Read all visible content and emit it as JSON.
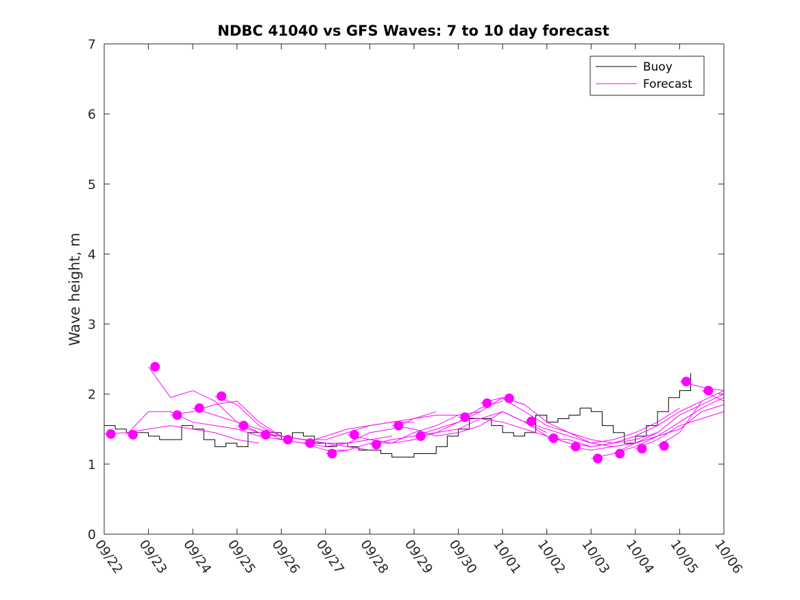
{
  "chart_data": {
    "type": "line",
    "title": "NDBC 41040 vs GFS Waves: 7 to 10 day forecast",
    "xlabel": "",
    "ylabel": "Wave height, m",
    "xlim": [
      0,
      14
    ],
    "ylim": [
      0,
      7
    ],
    "y_ticks": [
      "0",
      "1",
      "2",
      "3",
      "4",
      "5",
      "6",
      "7"
    ],
    "x_tick_labels": [
      "09/22",
      "09/23",
      "09/24",
      "09/25",
      "09/26",
      "09/27",
      "09/28",
      "09/29",
      "09/30",
      "10/01",
      "10/02",
      "10/03",
      "10/04",
      "10/05",
      "10/06"
    ],
    "legend": {
      "location": "top-right",
      "entries": [
        "Buoy",
        "Forecast"
      ]
    },
    "colors": {
      "buoy": "#000000",
      "forecast": "#ff00ff",
      "axis": "#262626"
    },
    "buoy_series": {
      "name": "Buoy",
      "x": [
        0.0,
        0.25,
        0.5,
        0.75,
        1.0,
        1.25,
        1.5,
        1.75,
        2.0,
        2.25,
        2.5,
        2.75,
        3.0,
        3.25,
        3.5,
        3.75,
        4.0,
        4.25,
        4.5,
        4.75,
        5.0,
        5.25,
        5.5,
        5.75,
        6.0,
        6.25,
        6.5,
        6.75,
        7.0,
        7.25,
        7.5,
        7.75,
        8.0,
        8.25,
        8.5,
        8.75,
        9.0,
        9.25,
        9.5,
        9.75,
        10.0,
        10.25,
        10.5,
        10.75,
        11.0,
        11.25,
        11.5,
        11.75,
        12.0,
        12.25,
        12.5,
        12.75,
        13.0,
        13.25
      ],
      "values": [
        1.55,
        1.5,
        1.45,
        1.45,
        1.4,
        1.35,
        1.35,
        1.55,
        1.5,
        1.35,
        1.25,
        1.3,
        1.25,
        1.45,
        1.45,
        1.45,
        1.35,
        1.45,
        1.4,
        1.3,
        1.25,
        1.3,
        1.25,
        1.2,
        1.2,
        1.15,
        1.1,
        1.1,
        1.15,
        1.15,
        1.25,
        1.4,
        1.5,
        1.65,
        1.65,
        1.55,
        1.45,
        1.4,
        1.45,
        1.7,
        1.6,
        1.65,
        1.7,
        1.8,
        1.75,
        1.55,
        1.45,
        1.3,
        1.4,
        1.55,
        1.75,
        1.95,
        2.05,
        2.3
      ]
    },
    "forecast_series": [
      {
        "name": "Forecast",
        "x": [
          0.0,
          0.5,
          1.0,
          1.5,
          2.0,
          2.5,
          3.0,
          3.5
        ],
        "values": [
          1.43,
          1.45,
          1.5,
          1.55,
          1.5,
          1.45,
          1.35,
          1.3
        ]
      },
      {
        "name": "Forecast",
        "x": [
          0.5,
          1.0,
          1.5,
          2.0,
          2.5,
          3.0,
          3.5,
          4.0
        ],
        "values": [
          1.42,
          1.75,
          1.75,
          1.6,
          1.55,
          1.5,
          1.4,
          1.35
        ]
      },
      {
        "name": "Forecast",
        "x": [
          1.0,
          1.5,
          2.0,
          2.5,
          3.0,
          3.5,
          4.0,
          4.5
        ],
        "values": [
          2.39,
          1.95,
          2.05,
          1.9,
          1.6,
          1.45,
          1.4,
          1.35
        ]
      },
      {
        "name": "Forecast",
        "x": [
          1.5,
          2.0,
          2.5,
          3.0,
          3.5,
          4.0,
          4.5,
          5.0
        ],
        "values": [
          1.7,
          1.75,
          1.85,
          1.9,
          1.6,
          1.4,
          1.35,
          1.3
        ]
      },
      {
        "name": "Forecast",
        "x": [
          2.0,
          2.5,
          3.0,
          3.5,
          4.0,
          4.5,
          5.0,
          5.5
        ],
        "values": [
          1.8,
          1.7,
          1.6,
          1.5,
          1.35,
          1.3,
          1.2,
          1.2
        ]
      },
      {
        "name": "Forecast",
        "x": [
          2.5,
          3.0,
          3.5,
          4.0,
          4.5,
          5.0,
          5.5,
          6.0
        ],
        "values": [
          1.97,
          1.85,
          1.55,
          1.4,
          1.35,
          1.3,
          1.25,
          1.2
        ]
      },
      {
        "name": "Forecast",
        "x": [
          3.0,
          3.5,
          4.0,
          4.5,
          5.0,
          5.5,
          6.0,
          6.5
        ],
        "values": [
          1.55,
          1.45,
          1.4,
          1.35,
          1.3,
          1.3,
          1.35,
          1.4
        ]
      },
      {
        "name": "Forecast",
        "x": [
          3.5,
          4.0,
          4.5,
          5.0,
          5.5,
          6.0,
          6.5,
          7.0
        ],
        "values": [
          1.42,
          1.4,
          1.35,
          1.35,
          1.45,
          1.55,
          1.6,
          1.6
        ]
      },
      {
        "name": "Forecast",
        "x": [
          4.0,
          4.5,
          5.0,
          5.5,
          6.0,
          6.5,
          7.0,
          7.5
        ],
        "values": [
          1.35,
          1.3,
          1.4,
          1.5,
          1.55,
          1.6,
          1.65,
          1.75
        ]
      },
      {
        "name": "Forecast",
        "x": [
          4.5,
          5.0,
          5.5,
          6.0,
          6.5,
          7.0,
          7.5,
          8.0
        ],
        "values": [
          1.3,
          1.25,
          1.3,
          1.45,
          1.5,
          1.65,
          1.7,
          1.7
        ]
      },
      {
        "name": "Forecast",
        "x": [
          5.0,
          5.5,
          6.0,
          6.5,
          7.0,
          7.5,
          8.0,
          8.5
        ],
        "values": [
          1.15,
          1.2,
          1.3,
          1.3,
          1.45,
          1.55,
          1.7,
          1.75
        ]
      },
      {
        "name": "Forecast",
        "x": [
          5.5,
          6.0,
          6.5,
          7.0,
          7.5,
          8.0,
          8.5,
          9.0
        ],
        "values": [
          1.42,
          1.35,
          1.3,
          1.35,
          1.45,
          1.6,
          1.8,
          1.9
        ]
      },
      {
        "name": "Forecast",
        "x": [
          6.0,
          6.5,
          7.0,
          7.5,
          8.0,
          8.5,
          9.0,
          9.5
        ],
        "values": [
          1.28,
          1.35,
          1.4,
          1.5,
          1.6,
          1.75,
          1.95,
          1.85
        ]
      },
      {
        "name": "Forecast",
        "x": [
          6.5,
          7.0,
          7.5,
          8.0,
          8.5,
          9.0,
          9.5,
          10.0
        ],
        "values": [
          1.55,
          1.5,
          1.4,
          1.45,
          1.55,
          1.75,
          1.6,
          1.45
        ]
      },
      {
        "name": "Forecast",
        "x": [
          7.0,
          7.5,
          8.0,
          8.5,
          9.0,
          9.5,
          10.0,
          10.5
        ],
        "values": [
          1.4,
          1.45,
          1.5,
          1.65,
          1.75,
          1.6,
          1.4,
          1.3
        ]
      },
      {
        "name": "Forecast",
        "x": [
          8.0,
          8.5,
          9.0,
          9.5,
          10.0,
          10.5,
          11.0,
          11.5
        ],
        "values": [
          1.67,
          1.65,
          1.6,
          1.5,
          1.4,
          1.3,
          1.25,
          1.3
        ]
      },
      {
        "name": "Forecast",
        "x": [
          8.5,
          9.0,
          9.5,
          10.0,
          10.5,
          11.0,
          11.5,
          12.0
        ],
        "values": [
          1.87,
          1.95,
          1.85,
          1.6,
          1.45,
          1.3,
          1.25,
          1.3
        ]
      },
      {
        "name": "Forecast",
        "x": [
          9.0,
          9.5,
          10.0,
          10.5,
          11.0,
          11.5,
          12.0,
          12.5
        ],
        "values": [
          1.94,
          1.75,
          1.55,
          1.45,
          1.35,
          1.3,
          1.35,
          1.45
        ]
      },
      {
        "name": "Forecast",
        "x": [
          9.5,
          10.0,
          10.5,
          11.0,
          11.5,
          12.0,
          12.5,
          13.0
        ],
        "values": [
          1.61,
          1.5,
          1.4,
          1.3,
          1.35,
          1.45,
          1.6,
          1.8
        ]
      },
      {
        "name": "Forecast",
        "x": [
          10.0,
          10.5,
          11.0,
          11.5,
          12.0,
          12.5,
          13.0,
          13.5
        ],
        "values": [
          1.37,
          1.35,
          1.25,
          1.3,
          1.4,
          1.55,
          1.75,
          1.9
        ]
      },
      {
        "name": "Forecast",
        "x": [
          10.5,
          11.0,
          11.5,
          12.0,
          12.5,
          13.0,
          13.5,
          14.0
        ],
        "values": [
          1.25,
          1.2,
          1.25,
          1.3,
          1.4,
          1.6,
          1.8,
          1.95
        ]
      },
      {
        "name": "Forecast",
        "x": [
          11.0,
          11.5,
          12.0,
          12.5,
          13.0,
          13.5,
          14.0
        ],
        "values": [
          1.08,
          1.15,
          1.3,
          1.45,
          1.7,
          1.85,
          2.0
        ]
      },
      {
        "name": "Forecast",
        "x": [
          11.5,
          12.0,
          12.5,
          13.0,
          13.5,
          14.0
        ],
        "values": [
          1.15,
          1.25,
          1.4,
          1.5,
          1.75,
          1.85
        ]
      },
      {
        "name": "Forecast",
        "x": [
          12.0,
          12.5,
          13.0,
          13.5,
          14.0
        ],
        "values": [
          1.22,
          1.35,
          1.55,
          1.65,
          1.75
        ]
      },
      {
        "name": "Forecast",
        "x": [
          12.5,
          13.0,
          13.5,
          14.0
        ],
        "values": [
          1.26,
          1.45,
          1.9,
          2.05
        ]
      },
      {
        "name": "Forecast",
        "x": [
          13.0,
          13.5,
          14.0
        ],
        "values": [
          2.18,
          2.1,
          2.05
        ]
      },
      {
        "name": "Forecast",
        "x": [
          13.5,
          14.0
        ],
        "values": [
          2.05,
          1.9
        ]
      }
    ],
    "forecast_markers": {
      "x": [
        0.15,
        0.65,
        1.15,
        1.65,
        2.15,
        2.65,
        3.15,
        3.65,
        4.15,
        4.65,
        5.15,
        5.65,
        6.15,
        6.65,
        7.15,
        8.15,
        8.65,
        9.15,
        9.65,
        10.15,
        10.65,
        11.15,
        11.65,
        12.15,
        12.65,
        13.15,
        13.65
      ],
      "values": [
        1.43,
        1.42,
        2.39,
        1.7,
        1.8,
        1.97,
        1.55,
        1.42,
        1.35,
        1.3,
        1.15,
        1.42,
        1.28,
        1.55,
        1.4,
        1.67,
        1.87,
        1.94,
        1.61,
        1.37,
        1.25,
        1.08,
        1.15,
        1.22,
        1.26,
        2.18,
        2.05
      ]
    }
  }
}
